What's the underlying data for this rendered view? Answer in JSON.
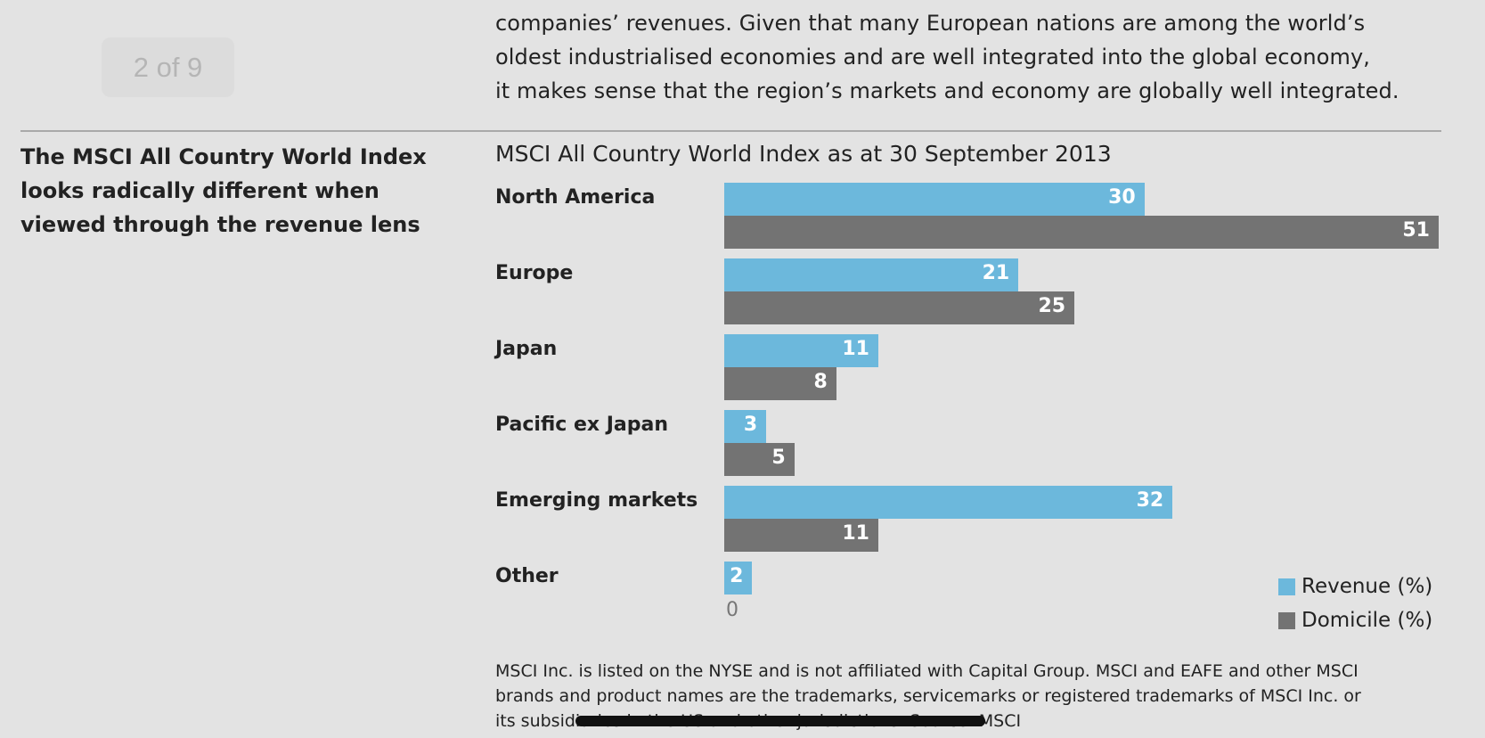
{
  "intro_paragraph": [
    "companies’ revenues. Given that many European nations are among the world’s",
    "oldest industrialised economies and are well integrated into the global economy,",
    "it makes sense that the region’s markets and economy are globally well integrated."
  ],
  "page_indicator": "2 of 9",
  "side_heading": [
    "The MSCI All Country World Index",
    "looks radically different when",
    "viewed through the revenue lens"
  ],
  "chart_data": {
    "type": "bar",
    "orientation": "horizontal",
    "title": "MSCI All Country World Index as at 30 September 2013",
    "categories": [
      "North America",
      "Europe",
      "Japan",
      "Pacific ex Japan",
      "Emerging markets",
      "Other"
    ],
    "series": [
      {
        "name": "Revenue (%)",
        "color": "#6cb8dc",
        "values": [
          30,
          21,
          11,
          3,
          32,
          2
        ]
      },
      {
        "name": "Domicile (%)",
        "color": "#737373",
        "values": [
          51,
          25,
          8,
          5,
          11,
          null
        ]
      }
    ],
    "axis_min_label": "0",
    "xlim": [
      0,
      51
    ],
    "grid": false,
    "legend_position": "bottom-right"
  },
  "footnote": [
    "MSCI Inc. is listed on the NYSE and is not affiliated with Capital Group. MSCI and EAFE and other MSCI",
    "brands and product names are the trademarks, servicemarks or registered trademarks of MSCI Inc. or",
    "its subsidiaries in the US and other jurisdictions. Source: MSCI"
  ]
}
